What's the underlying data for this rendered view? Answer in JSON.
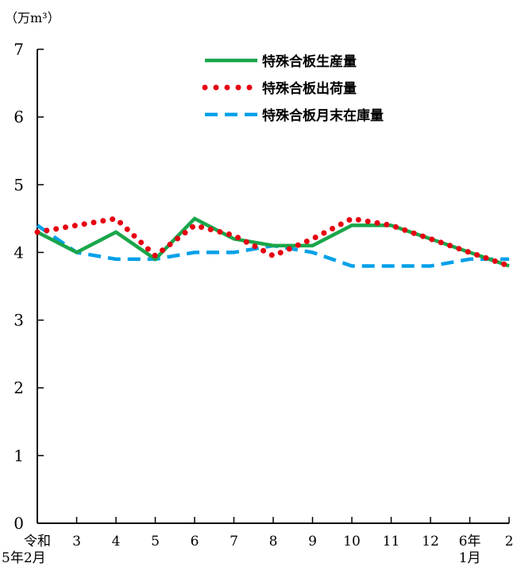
{
  "chart_data": {
    "type": "line",
    "unit": "（万m³）",
    "ylim": [
      0,
      7
    ],
    "yticks": [
      "0",
      "1",
      "2",
      "3",
      "4",
      "5",
      "6",
      "7"
    ],
    "categories": [
      [
        "令和",
        "5年2月"
      ],
      [
        "3"
      ],
      [
        "4"
      ],
      [
        "5"
      ],
      [
        "6"
      ],
      [
        "7"
      ],
      [
        "8"
      ],
      [
        "9"
      ],
      [
        "10"
      ],
      [
        "11"
      ],
      [
        "12"
      ],
      [
        "6年",
        "1月"
      ],
      [
        "2"
      ]
    ],
    "grid": false,
    "legend_position": "top-right",
    "series": [
      {
        "name": "特殊合板生産量",
        "style": "solid",
        "color": "#1aa64b",
        "values": [
          4.3,
          4.0,
          4.3,
          3.9,
          4.5,
          4.2,
          4.1,
          4.1,
          4.4,
          4.4,
          4.2,
          4.0,
          3.8
        ]
      },
      {
        "name": "特殊合板出荷量",
        "style": "dotted",
        "color": "#e60012",
        "values": [
          4.3,
          4.4,
          4.5,
          3.95,
          4.4,
          4.25,
          3.95,
          4.2,
          4.5,
          4.4,
          4.2,
          4.0,
          3.8
        ]
      },
      {
        "name": "特殊合板月末在庫量",
        "style": "dashed",
        "color": "#00a0e9",
        "values": [
          4.4,
          4.0,
          3.9,
          3.9,
          4.0,
          4.0,
          4.1,
          4.0,
          3.8,
          3.8,
          3.8,
          3.9,
          3.9
        ]
      }
    ]
  }
}
